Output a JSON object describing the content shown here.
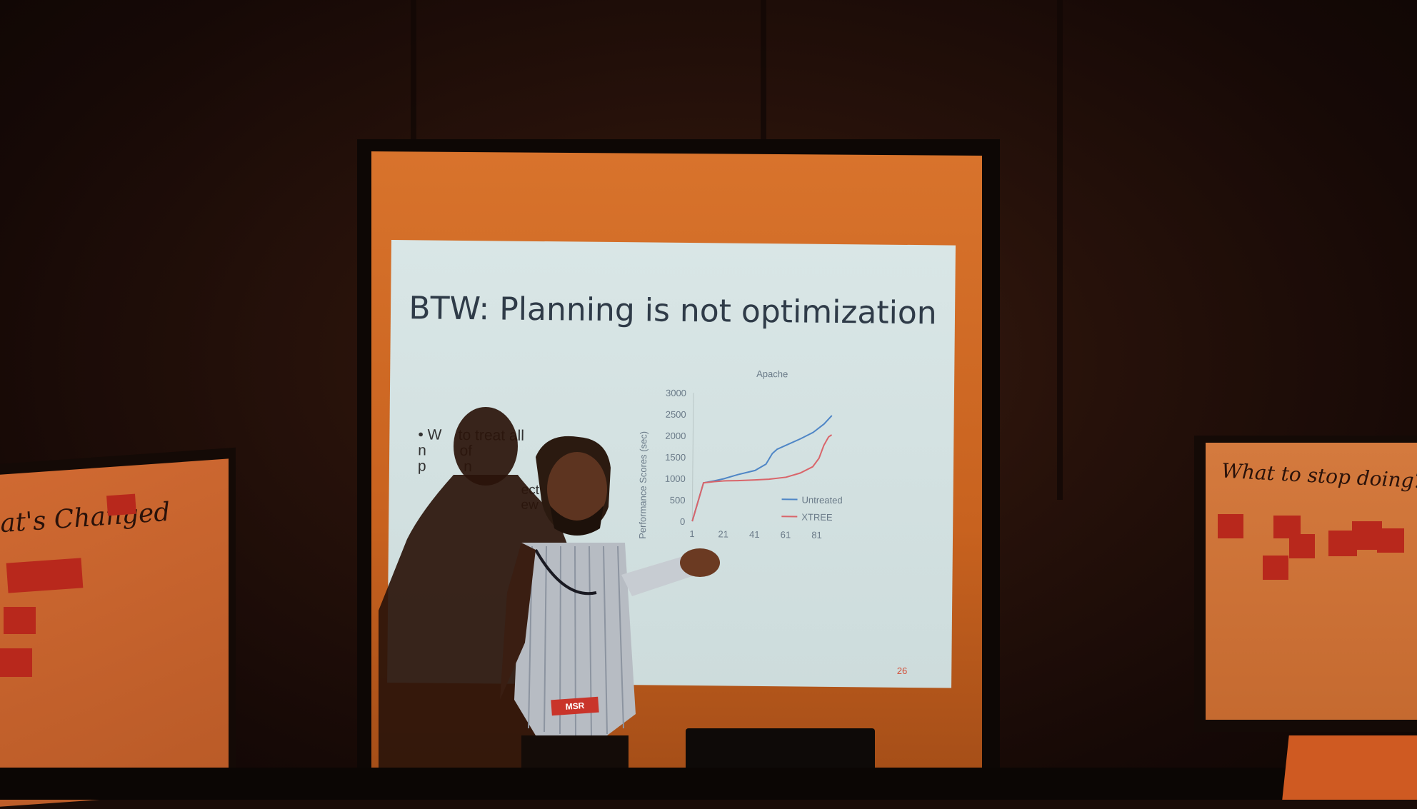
{
  "slide": {
    "title": "BTW: Planning is not optimization",
    "bullet_fragment_1": "• W    to treat all",
    "bullet_fragment_2": "n        of",
    "bullet_fragment_3": "p         n",
    "sub_fragment_1": "ect",
    "sub_fragment_2": "ew",
    "slide_number": "26"
  },
  "chart_data": {
    "type": "line",
    "title": "Apache",
    "ylabel": "Performance Scores (sec)",
    "xlabel": "",
    "ylim": [
      0,
      3000
    ],
    "yticks": [
      "3000",
      "2500",
      "2000",
      "1500",
      "1000",
      "500",
      "0"
    ],
    "xticks": [
      "1",
      "21",
      "41",
      "61",
      "81"
    ],
    "legend_position": "lower-right",
    "series": [
      {
        "name": "Untreated",
        "color": "#4f86c6",
        "x": [
          1,
          8,
          15,
          21,
          30,
          41,
          48,
          52,
          55,
          61,
          70,
          78,
          85,
          90
        ],
        "y": [
          0,
          900,
          950,
          1000,
          1100,
          1200,
          1350,
          1600,
          1700,
          1800,
          1950,
          2100,
          2300,
          2500
        ]
      },
      {
        "name": "XTREE",
        "color": "#d9656a",
        "x": [
          1,
          8,
          15,
          21,
          30,
          41,
          50,
          61,
          70,
          78,
          82,
          85,
          88,
          90
        ],
        "y": [
          0,
          900,
          930,
          950,
          960,
          980,
          1000,
          1050,
          1150,
          1300,
          1500,
          1800,
          2000,
          2050
        ]
      }
    ]
  },
  "flipchart_left": {
    "heading": "at's Changed"
  },
  "flipchart_right": {
    "heading": "What to stop doing?"
  },
  "badge": {
    "text": "MSR"
  }
}
